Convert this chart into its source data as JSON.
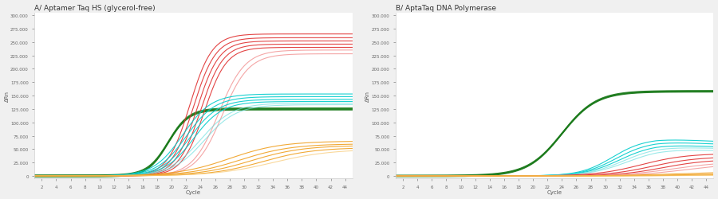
{
  "title_a": "A/ Aptamer Taq HS (glycerol-free)",
  "title_b": "B/ AptaTaq DNA Polymerase",
  "xlabel": "Cycle",
  "ylabel": "ΔRn",
  "xlim": [
    1,
    45
  ],
  "ylim": [
    -5000,
    305000
  ],
  "yticks": [
    0,
    25000,
    50000,
    75000,
    100000,
    125000,
    150000,
    175000,
    200000,
    225000,
    250000,
    275000,
    300000
  ],
  "xticks": [
    2,
    4,
    6,
    8,
    10,
    12,
    14,
    16,
    18,
    20,
    22,
    24,
    26,
    28,
    30,
    32,
    34,
    36,
    38,
    40,
    42,
    44
  ],
  "bg_color": "#f0f0f0",
  "plot_bg": "#ffffff",
  "green_color": "#1a7a1a",
  "red_color": "#e03030",
  "red_light_color": "#f08080",
  "cyan_color": "#00cccc",
  "cyan_light_color": "#70e0e0",
  "orange_color": "#f0a020",
  "orange_light_color": "#f8c870"
}
